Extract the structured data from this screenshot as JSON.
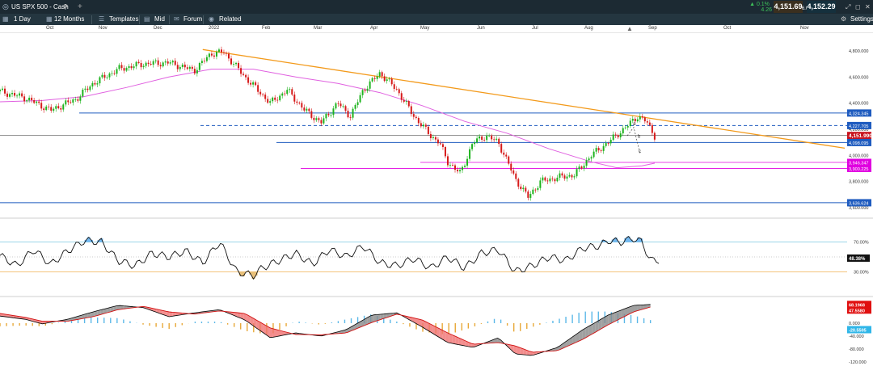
{
  "topbar": {
    "instrument": "US SPX 500 - Cash",
    "change_pct": "▲ 0.1%",
    "change_pts": "4.26",
    "bid": "4,151.69",
    "ask": "4,152.29",
    "spread": "6.0",
    "colors": {
      "bg": "#1c2a33",
      "up": "#3ec15a",
      "bid_bg": "#3a2f1f",
      "ask_bg": "#15303d"
    }
  },
  "toolbar": {
    "interval": "1 Day",
    "range": "12 Months",
    "templates": "Templates",
    "price_type": "Mid",
    "forum": "Forum",
    "related": "Related",
    "settings": "Settings"
  },
  "time_axis": [
    "Oct",
    "Nov",
    "Dec",
    "2022",
    "Feb",
    "Mar",
    "Apr",
    "May",
    "Jun",
    "Jul",
    "Aug",
    "Sep",
    "Oct",
    "Nov"
  ],
  "chart_data": [
    {
      "type": "candlestick",
      "panel": "price",
      "x_range": [
        "Sep 2021",
        "Nov 2022"
      ],
      "ylim": [
        3550,
        4880
      ],
      "y_ticks": [
        "4,800.000",
        "4,600.000",
        "4,400.000",
        "4,200.000",
        "4,000.000",
        "3,800.000",
        "3,600.000"
      ],
      "close_points": [
        [
          0,
          4490
        ],
        [
          0.03,
          4440
        ],
        [
          0.06,
          4345
        ],
        [
          0.09,
          4430
        ],
        [
          0.11,
          4550
        ],
        [
          0.14,
          4660
        ],
        [
          0.17,
          4700
        ],
        [
          0.2,
          4710
        ],
        [
          0.23,
          4650
        ],
        [
          0.25,
          4780
        ],
        [
          0.265,
          4790
        ],
        [
          0.29,
          4600
        ],
        [
          0.32,
          4400
        ],
        [
          0.34,
          4500
        ],
        [
          0.36,
          4350
        ],
        [
          0.38,
          4250
        ],
        [
          0.4,
          4400
        ],
        [
          0.415,
          4300
        ],
        [
          0.43,
          4500
        ],
        [
          0.45,
          4630
        ],
        [
          0.47,
          4500
        ],
        [
          0.49,
          4300
        ],
        [
          0.51,
          4150
        ],
        [
          0.52,
          4100
        ],
        [
          0.53,
          3950
        ],
        [
          0.545,
          3860
        ],
        [
          0.56,
          4100
        ],
        [
          0.575,
          4150
        ],
        [
          0.59,
          4100
        ],
        [
          0.61,
          3820
        ],
        [
          0.625,
          3680
        ],
        [
          0.64,
          3800
        ],
        [
          0.66,
          3830
        ],
        [
          0.68,
          3850
        ],
        [
          0.7,
          4000
        ],
        [
          0.72,
          4100
        ],
        [
          0.74,
          4210
        ],
        [
          0.755,
          4300
        ],
        [
          0.765,
          4260
        ],
        [
          0.775,
          4150
        ]
      ],
      "sma": [
        [
          0,
          4410
        ],
        [
          0.05,
          4420
        ],
        [
          0.1,
          4450
        ],
        [
          0.15,
          4520
        ],
        [
          0.2,
          4600
        ],
        [
          0.25,
          4660
        ],
        [
          0.3,
          4660
        ],
        [
          0.35,
          4600
        ],
        [
          0.4,
          4550
        ],
        [
          0.45,
          4480
        ],
        [
          0.5,
          4380
        ],
        [
          0.55,
          4260
        ],
        [
          0.6,
          4170
        ],
        [
          0.65,
          4050
        ],
        [
          0.7,
          3950
        ],
        [
          0.73,
          3905
        ],
        [
          0.76,
          3920
        ],
        [
          0.775,
          3940
        ]
      ],
      "trendline": [
        [
          0.24,
          4810
        ],
        [
          1.0,
          4055
        ]
      ],
      "horizontal_lines": [
        {
          "label": "4,324.345",
          "value": 4324,
          "color": "#1e5bbf",
          "style": "solid"
        },
        {
          "label": "4,227.705",
          "value": 4228,
          "color": "#1e5bbf",
          "style": "dashed"
        },
        {
          "label": "4,151.990",
          "value": 4152,
          "color": "#c8121c",
          "style": "current"
        },
        {
          "label": "4,098.095",
          "value": 4098,
          "color": "#1e5bbf",
          "style": "solid"
        },
        {
          "label": "3,946.347",
          "value": 3946,
          "color": "#e000e0",
          "style": "magenta"
        },
        {
          "label": "3,900.225",
          "value": 3900,
          "color": "#e000e0",
          "style": "magenta-thin"
        },
        {
          "label": "3,636.624",
          "value": 3637,
          "color": "#1e5bbf",
          "style": "solid"
        }
      ],
      "wave_labels": [
        "a",
        "b",
        "c"
      ]
    },
    {
      "type": "line",
      "panel": "rsi",
      "ylim": [
        0,
        100
      ],
      "levels": [
        70,
        30
      ],
      "y_ticks": [
        "70.00%",
        "30.00%"
      ],
      "current_label": "48.38%",
      "values": [
        [
          0,
          52
        ],
        [
          0.02,
          38
        ],
        [
          0.04,
          60
        ],
        [
          0.06,
          40
        ],
        [
          0.08,
          58
        ],
        [
          0.1,
          72
        ],
        [
          0.12,
          70
        ],
        [
          0.14,
          45
        ],
        [
          0.16,
          38
        ],
        [
          0.18,
          55
        ],
        [
          0.2,
          50
        ],
        [
          0.22,
          58
        ],
        [
          0.24,
          42
        ],
        [
          0.26,
          70
        ],
        [
          0.28,
          30
        ],
        [
          0.3,
          25
        ],
        [
          0.31,
          35
        ],
        [
          0.33,
          45
        ],
        [
          0.35,
          55
        ],
        [
          0.37,
          40
        ],
        [
          0.39,
          60
        ],
        [
          0.41,
          50
        ],
        [
          0.43,
          65
        ],
        [
          0.45,
          42
        ],
        [
          0.47,
          38
        ],
        [
          0.49,
          48
        ],
        [
          0.51,
          35
        ],
        [
          0.53,
          50
        ],
        [
          0.55,
          35
        ],
        [
          0.57,
          55
        ],
        [
          0.59,
          60
        ],
        [
          0.61,
          30
        ],
        [
          0.63,
          38
        ],
        [
          0.65,
          50
        ],
        [
          0.67,
          45
        ],
        [
          0.69,
          62
        ],
        [
          0.71,
          65
        ],
        [
          0.72,
          72
        ],
        [
          0.735,
          70
        ],
        [
          0.75,
          75
        ],
        [
          0.76,
          70
        ],
        [
          0.77,
          45
        ],
        [
          0.78,
          46
        ]
      ]
    },
    {
      "type": "macd",
      "panel": "macd",
      "ylim": [
        -125,
        75
      ],
      "y_ticks": [
        "40.000",
        "0.000",
        "-40.000",
        "-80.000",
        "-120.000"
      ],
      "labels": [
        "68.1968",
        "47.5580",
        "-20.5505"
      ],
      "macd_line": [
        [
          0,
          22
        ],
        [
          0.03,
          12
        ],
        [
          0.05,
          -2
        ],
        [
          0.08,
          12
        ],
        [
          0.11,
          35
        ],
        [
          0.14,
          55
        ],
        [
          0.17,
          48
        ],
        [
          0.2,
          20
        ],
        [
          0.23,
          32
        ],
        [
          0.26,
          42
        ],
        [
          0.29,
          10
        ],
        [
          0.32,
          -45
        ],
        [
          0.35,
          -30
        ],
        [
          0.38,
          -40
        ],
        [
          0.41,
          -20
        ],
        [
          0.44,
          25
        ],
        [
          0.47,
          32
        ],
        [
          0.5,
          -12
        ],
        [
          0.53,
          -60
        ],
        [
          0.56,
          -75
        ],
        [
          0.59,
          -45
        ],
        [
          0.61,
          -95
        ],
        [
          0.63,
          -100
        ],
        [
          0.66,
          -75
        ],
        [
          0.69,
          -20
        ],
        [
          0.72,
          25
        ],
        [
          0.75,
          55
        ],
        [
          0.77,
          58
        ]
      ],
      "signal_line": [
        [
          0,
          30
        ],
        [
          0.03,
          18
        ],
        [
          0.05,
          6
        ],
        [
          0.08,
          6
        ],
        [
          0.11,
          20
        ],
        [
          0.14,
          42
        ],
        [
          0.17,
          52
        ],
        [
          0.2,
          35
        ],
        [
          0.23,
          28
        ],
        [
          0.26,
          38
        ],
        [
          0.29,
          30
        ],
        [
          0.32,
          -15
        ],
        [
          0.35,
          -35
        ],
        [
          0.38,
          -36
        ],
        [
          0.41,
          -30
        ],
        [
          0.44,
          2
        ],
        [
          0.47,
          28
        ],
        [
          0.5,
          10
        ],
        [
          0.53,
          -30
        ],
        [
          0.56,
          -65
        ],
        [
          0.59,
          -60
        ],
        [
          0.61,
          -70
        ],
        [
          0.63,
          -90
        ],
        [
          0.66,
          -85
        ],
        [
          0.69,
          -50
        ],
        [
          0.72,
          -5
        ],
        [
          0.75,
          35
        ],
        [
          0.77,
          50
        ]
      ]
    }
  ],
  "ui_colors": {
    "sma": "#e060e0",
    "trendline": "#f39a1b",
    "up": "#1db31d",
    "down": "#d61a1a",
    "rsi_fill_up": "#73b8f0",
    "rsi_fill_down": "#e8c07a"
  }
}
